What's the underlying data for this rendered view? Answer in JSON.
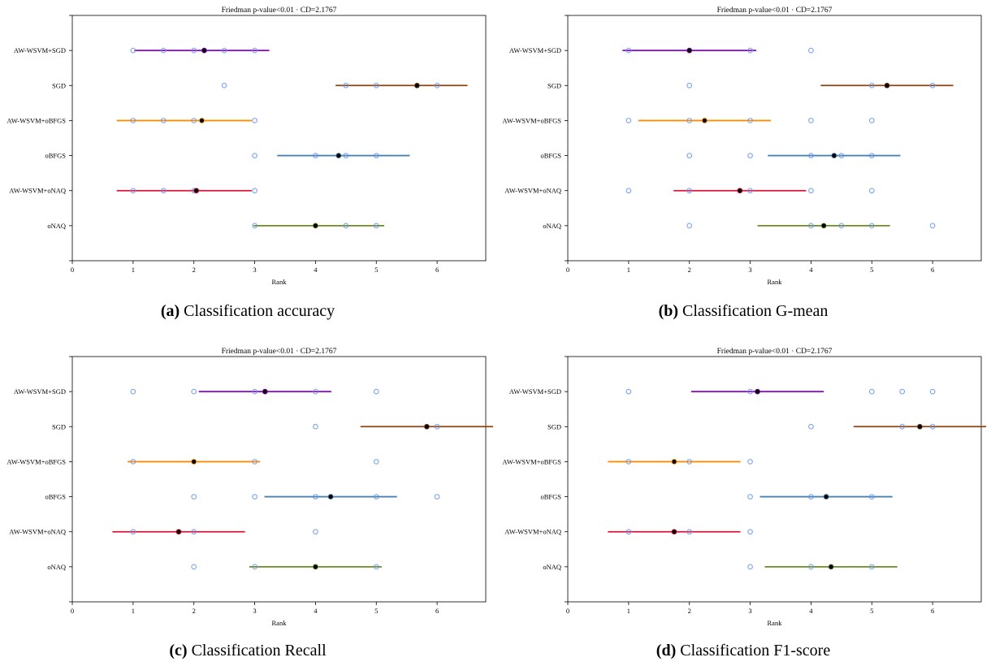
{
  "chart_data": [
    {
      "type": "scatter",
      "panel_label": "(a)",
      "caption": "Classification accuracy",
      "title": "Friedman p-value<0.01 · CD=2.1767",
      "xlabel": "Rank",
      "ylabel": "",
      "xlim": [
        0,
        6.8
      ],
      "xticks": [
        0,
        1,
        2,
        3,
        4,
        5,
        6
      ],
      "categories": [
        "AW-WSVM+SGD",
        "SGD",
        "AW-WSVM+oBFGS",
        "oBFGS",
        "AW-WSVM+oNAQ",
        "oNAQ"
      ],
      "series": [
        {
          "category": "AW-WSVM+SGD",
          "color": "#9400d3",
          "mean": 2.17,
          "ci": [
            1.02,
            3.24
          ],
          "ranks": [
            1,
            1.5,
            2,
            2.5,
            3
          ]
        },
        {
          "category": "SGD",
          "color": "#8b4513",
          "mean": 5.67,
          "ci": [
            4.33,
            6.5
          ],
          "ranks": [
            2.5,
            4.5,
            5,
            6
          ]
        },
        {
          "category": "AW-WSVM+oBFGS",
          "color": "#ff8c00",
          "mean": 2.13,
          "ci": [
            0.73,
            2.95
          ],
          "ranks": [
            1,
            1.5,
            2,
            3
          ]
        },
        {
          "category": "oBFGS",
          "color": "#4682b4",
          "mean": 4.38,
          "ci": [
            3.37,
            5.55
          ],
          "ranks": [
            3,
            4,
            4.5,
            5
          ]
        },
        {
          "category": "AW-WSVM+oNAQ",
          "color": "#dc143c",
          "mean": 2.04,
          "ci": [
            0.73,
            2.95
          ],
          "ranks": [
            1,
            1.5,
            2,
            3
          ]
        },
        {
          "category": "oNAQ",
          "color": "#6b8e23",
          "mean": 4.0,
          "ci": [
            2.98,
            5.13
          ],
          "ranks": [
            3,
            4,
            4.5,
            5
          ]
        }
      ]
    },
    {
      "type": "scatter",
      "panel_label": "(b)",
      "caption": "Classification G-mean",
      "title": "Friedman p-value<0.01 · CD=2.1767",
      "xlabel": "Rank",
      "ylabel": "",
      "xlim": [
        0,
        6.8
      ],
      "xticks": [
        0,
        1,
        2,
        3,
        4,
        5,
        6
      ],
      "categories": [
        "AW-WSVM+SGD",
        "SGD",
        "AW-WSVM+oBFGS",
        "oBFGS",
        "AW-WSVM+oNAQ",
        "oNAQ"
      ],
      "series": [
        {
          "category": "AW-WSVM+SGD",
          "color": "#9400d3",
          "mean": 2.0,
          "ci": [
            0.9,
            3.1
          ],
          "ranks": [
            1,
            2,
            3,
            4
          ]
        },
        {
          "category": "SGD",
          "color": "#8b4513",
          "mean": 5.25,
          "ci": [
            4.16,
            6.34
          ],
          "ranks": [
            2,
            5,
            6
          ]
        },
        {
          "category": "AW-WSVM+oBFGS",
          "color": "#ff8c00",
          "mean": 2.25,
          "ci": [
            1.16,
            3.34
          ],
          "ranks": [
            1,
            2,
            3,
            4,
            5
          ]
        },
        {
          "category": "oBFGS",
          "color": "#4682b4",
          "mean": 4.38,
          "ci": [
            3.29,
            5.47
          ],
          "ranks": [
            2,
            3,
            4,
            4.5,
            5
          ]
        },
        {
          "category": "AW-WSVM+oNAQ",
          "color": "#dc143c",
          "mean": 2.83,
          "ci": [
            1.74,
            3.92
          ],
          "ranks": [
            1,
            2,
            3,
            4,
            5
          ]
        },
        {
          "category": "oNAQ",
          "color": "#6b8e23",
          "mean": 4.21,
          "ci": [
            3.12,
            5.3
          ],
          "ranks": [
            2,
            4,
            4.5,
            5,
            6
          ]
        }
      ]
    },
    {
      "type": "scatter",
      "panel_label": "(c)",
      "caption": "Classification Recall",
      "title": "Friedman p-value<0.01 · CD=2.1767",
      "xlabel": "Rank",
      "ylabel": "",
      "xlim": [
        0,
        6.8
      ],
      "xticks": [
        0,
        1,
        2,
        3,
        4,
        5,
        6
      ],
      "categories": [
        "AW-WSVM+SGD",
        "SGD",
        "AW-WSVM+oBFGS",
        "oBFGS",
        "AW-WSVM+oNAQ",
        "oNAQ"
      ],
      "series": [
        {
          "category": "AW-WSVM+SGD",
          "color": "#9400d3",
          "mean": 3.17,
          "ci": [
            2.08,
            4.26
          ],
          "ranks": [
            1,
            2,
            3,
            4,
            5
          ]
        },
        {
          "category": "SGD",
          "color": "#8b4513",
          "mean": 5.83,
          "ci": [
            4.74,
            6.92
          ],
          "ranks": [
            4,
            6
          ]
        },
        {
          "category": "AW-WSVM+oBFGS",
          "color": "#ff8c00",
          "mean": 2.0,
          "ci": [
            0.91,
            3.09
          ],
          "ranks": [
            1,
            2,
            3,
            5
          ]
        },
        {
          "category": "oBFGS",
          "color": "#4682b4",
          "mean": 4.25,
          "ci": [
            3.16,
            5.34
          ],
          "ranks": [
            2,
            3,
            4,
            5,
            6
          ]
        },
        {
          "category": "AW-WSVM+oNAQ",
          "color": "#dc143c",
          "mean": 1.75,
          "ci": [
            0.66,
            2.84
          ],
          "ranks": [
            1,
            2,
            4
          ]
        },
        {
          "category": "oNAQ",
          "color": "#6b8e23",
          "mean": 4.0,
          "ci": [
            2.91,
            5.09
          ],
          "ranks": [
            2,
            3,
            4,
            5
          ]
        }
      ]
    },
    {
      "type": "scatter",
      "panel_label": "(d)",
      "caption": "Classification F1-score",
      "title": "Friedman p-value<0.01 · CD=2.1767",
      "xlabel": "Rank",
      "ylabel": "",
      "xlim": [
        0,
        6.8
      ],
      "xticks": [
        0,
        1,
        2,
        3,
        4,
        5,
        6
      ],
      "categories": [
        "AW-WSVM+SGD",
        "SGD",
        "AW-WSVM+oBFGS",
        "oBFGS",
        "AW-WSVM+oNAQ",
        "oNAQ"
      ],
      "series": [
        {
          "category": "AW-WSVM+SGD",
          "color": "#9400d3",
          "mean": 3.12,
          "ci": [
            2.03,
            4.21
          ],
          "ranks": [
            1,
            3,
            5,
            5.5,
            6
          ]
        },
        {
          "category": "SGD",
          "color": "#8b4513",
          "mean": 5.79,
          "ci": [
            4.7,
            6.88
          ],
          "ranks": [
            4,
            5.5,
            6
          ]
        },
        {
          "category": "AW-WSVM+oBFGS",
          "color": "#ff8c00",
          "mean": 1.75,
          "ci": [
            0.66,
            2.84
          ],
          "ranks": [
            1,
            2,
            3
          ]
        },
        {
          "category": "oBFGS",
          "color": "#4682b4",
          "mean": 4.25,
          "ci": [
            3.16,
            5.34
          ],
          "ranks": [
            3,
            4,
            5
          ]
        },
        {
          "category": "AW-WSVM+oNAQ",
          "color": "#dc143c",
          "mean": 1.75,
          "ci": [
            0.66,
            2.84
          ],
          "ranks": [
            1,
            2,
            3
          ]
        },
        {
          "category": "oNAQ",
          "color": "#6b8e23",
          "mean": 4.33,
          "ci": [
            3.24,
            5.42
          ],
          "ranks": [
            3,
            4,
            5
          ]
        }
      ]
    }
  ]
}
